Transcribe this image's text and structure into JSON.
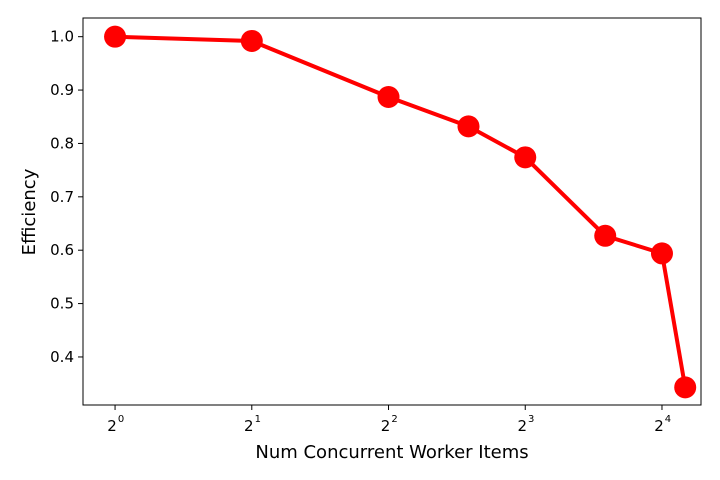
{
  "chart_data": {
    "type": "line",
    "title": "",
    "xlabel": "Num Concurrent Worker Items",
    "ylabel": "Efficiency",
    "x_scale": "log2",
    "x_tick_values": [
      1,
      2,
      4,
      8,
      16
    ],
    "x_tick_base": "2",
    "x_tick_exponents": [
      "0",
      "1",
      "2",
      "3",
      "4"
    ],
    "y_ticks": [
      0.4,
      0.5,
      0.6,
      0.7,
      0.8,
      0.9,
      1.0
    ],
    "y_tick_labels": [
      "0.4",
      "0.5",
      "0.6",
      "0.7",
      "0.8",
      "0.9",
      "1.0"
    ],
    "ylim": [
      0.31,
      1.035
    ],
    "xlim": [
      0.85,
      19.5
    ],
    "grid": false,
    "series": [
      {
        "color": "#ff0000",
        "marker": "circle",
        "x": [
          1,
          2,
          4,
          6,
          8,
          12,
          16,
          18
        ],
        "y": [
          1.0,
          0.992,
          0.887,
          0.832,
          0.774,
          0.627,
          0.594,
          0.343
        ]
      }
    ]
  }
}
